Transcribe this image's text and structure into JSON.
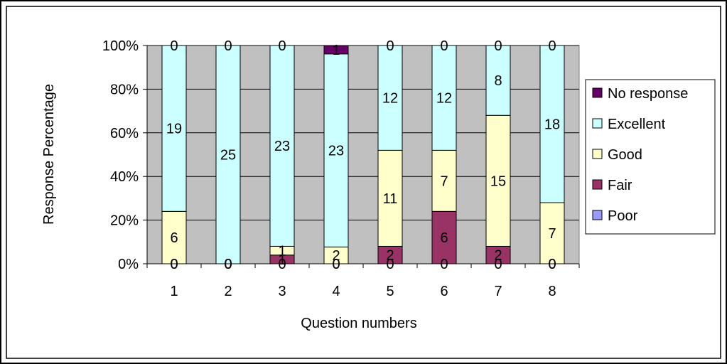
{
  "chart_data": {
    "type": "bar",
    "stacked": "percent",
    "categories": [
      "1",
      "2",
      "3",
      "4",
      "5",
      "6",
      "7",
      "8"
    ],
    "series": [
      {
        "name": "Poor",
        "color": "#9999ff",
        "values": [
          0,
          0,
          0,
          0,
          0,
          0,
          0,
          0
        ]
      },
      {
        "name": "Fair",
        "color": "#993366",
        "values": [
          0,
          0,
          1,
          0,
          2,
          6,
          2,
          0
        ]
      },
      {
        "name": "Good",
        "color": "#ffffcc",
        "values": [
          6,
          0,
          1,
          2,
          11,
          7,
          15,
          7
        ]
      },
      {
        "name": "Excellent",
        "color": "#ccffff",
        "values": [
          19,
          25,
          23,
          23,
          12,
          12,
          8,
          18
        ]
      },
      {
        "name": "No response",
        "color": "#660066",
        "values": [
          0,
          0,
          0,
          1,
          0,
          0,
          0,
          0
        ]
      }
    ],
    "legend_order": [
      "No response",
      "Excellent",
      "Good",
      "Fair",
      "Poor"
    ],
    "y_ticks": [
      "0%",
      "20%",
      "40%",
      "60%",
      "80%",
      "100%"
    ],
    "ylim": [
      0,
      100
    ],
    "xlabel": "Question numbers",
    "ylabel": "Response Percentage",
    "plot_background": "#c0c0c0",
    "grid": true,
    "legend_position": "right"
  }
}
